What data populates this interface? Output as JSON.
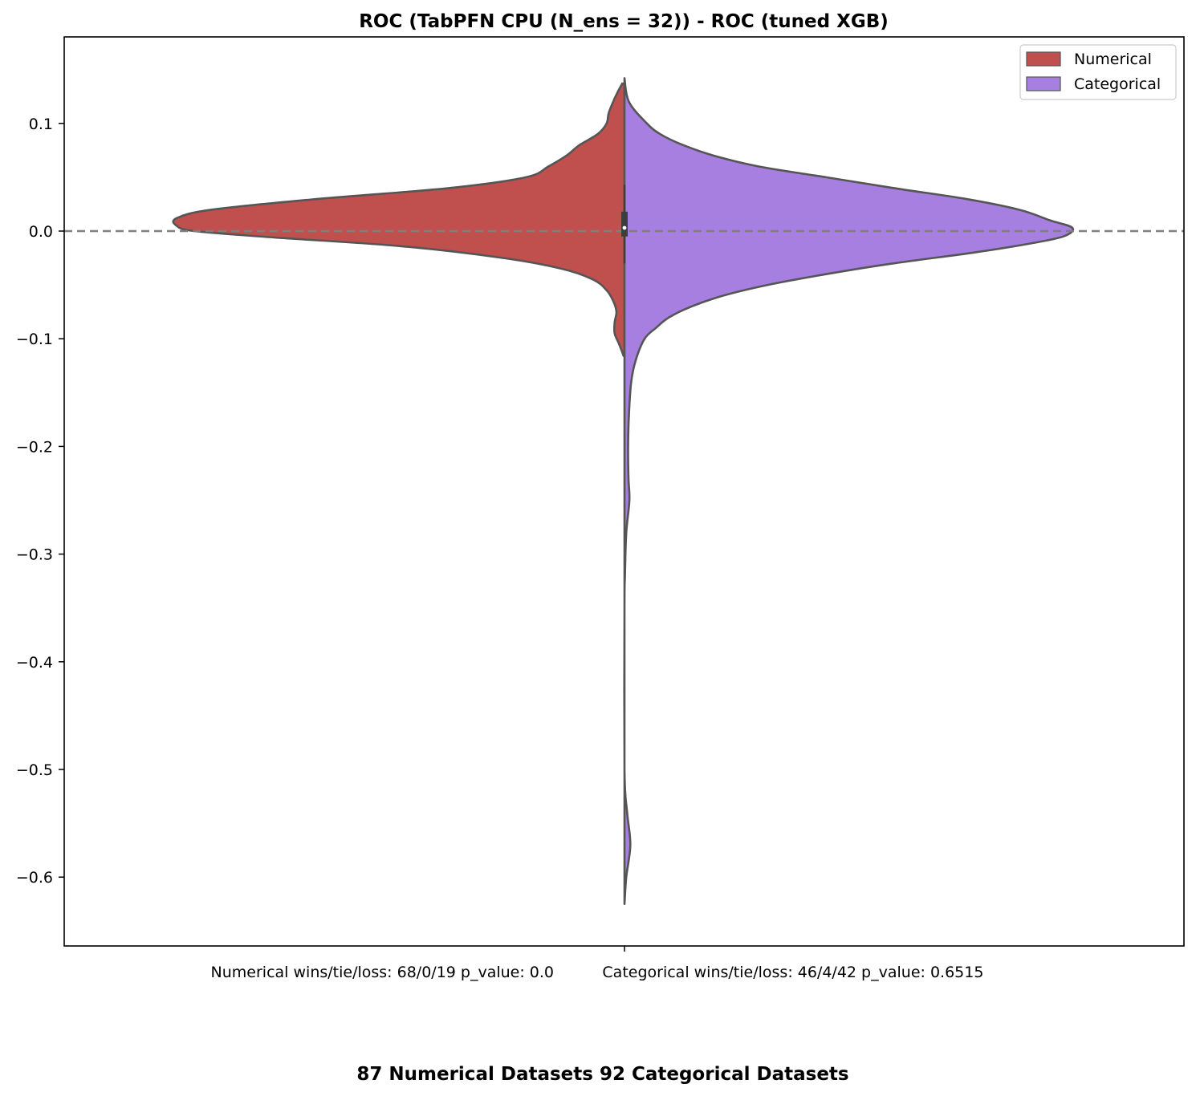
{
  "chart_data": {
    "type": "violin",
    "title": "ROC (TabPFN CPU (N_ens = 32)) - ROC (tuned XGB)",
    "xlabel": "Numerical wins/tie/loss: 68/0/19 p_value: 0.0          Categorical wins/tie/loss: 46/4/42 p_value: 0.6515",
    "footer": "87 Numerical Datasets 92 Categorical Datasets",
    "ylim": [
      -0.665,
      0.18
    ],
    "yticks": [
      0.1,
      0.0,
      -0.1,
      -0.2,
      -0.3,
      -0.4,
      -0.5,
      -0.6
    ],
    "ytick_labels": [
      "0.1",
      "0.0",
      "−0.1",
      "−0.2",
      "−0.3",
      "−0.4",
      "−0.5",
      "−0.6"
    ],
    "grid": false,
    "legend_position": "top-right",
    "reference_line": {
      "y": 0.0,
      "style": "dashed",
      "color": "#7f7f7f"
    },
    "series": [
      {
        "name": "Numerical",
        "color": "#c0504d",
        "side": "left",
        "density_profile": [
          [
            0.137,
            0.005
          ],
          [
            0.125,
            0.02
          ],
          [
            0.11,
            0.035
          ],
          [
            0.1,
            0.04
          ],
          [
            0.09,
            0.06
          ],
          [
            0.08,
            0.1
          ],
          [
            0.07,
            0.13
          ],
          [
            0.06,
            0.17
          ],
          [
            0.05,
            0.22
          ],
          [
            0.04,
            0.39
          ],
          [
            0.03,
            0.68
          ],
          [
            0.02,
            0.92
          ],
          [
            0.012,
            1.0
          ],
          [
            0.005,
            1.0
          ],
          [
            0.0,
            0.96
          ],
          [
            -0.006,
            0.78
          ],
          [
            -0.014,
            0.5
          ],
          [
            -0.025,
            0.27
          ],
          [
            -0.035,
            0.14
          ],
          [
            -0.045,
            0.07
          ],
          [
            -0.055,
            0.04
          ],
          [
            -0.065,
            0.025
          ],
          [
            -0.075,
            0.018
          ],
          [
            -0.085,
            0.022
          ],
          [
            -0.095,
            0.022
          ],
          [
            -0.105,
            0.012
          ],
          [
            -0.116,
            0.002
          ]
        ]
      },
      {
        "name": "Categorical",
        "color": "#a77fe0",
        "side": "right",
        "density_profile": [
          [
            0.142,
            0.0
          ],
          [
            0.12,
            0.01
          ],
          [
            0.1,
            0.05
          ],
          [
            0.09,
            0.08
          ],
          [
            0.08,
            0.13
          ],
          [
            0.07,
            0.2
          ],
          [
            0.06,
            0.3
          ],
          [
            0.05,
            0.45
          ],
          [
            0.04,
            0.6
          ],
          [
            0.03,
            0.76
          ],
          [
            0.02,
            0.88
          ],
          [
            0.01,
            0.95
          ],
          [
            0.003,
            1.0
          ],
          [
            -0.005,
            0.98
          ],
          [
            -0.012,
            0.9
          ],
          [
            -0.02,
            0.78
          ],
          [
            -0.03,
            0.6
          ],
          [
            -0.04,
            0.45
          ],
          [
            -0.05,
            0.32
          ],
          [
            -0.06,
            0.22
          ],
          [
            -0.07,
            0.15
          ],
          [
            -0.08,
            0.1
          ],
          [
            -0.09,
            0.07
          ],
          [
            -0.1,
            0.045
          ],
          [
            -0.12,
            0.025
          ],
          [
            -0.14,
            0.015
          ],
          [
            -0.17,
            0.01
          ],
          [
            -0.2,
            0.008
          ],
          [
            -0.23,
            0.009
          ],
          [
            -0.25,
            0.011
          ],
          [
            -0.28,
            0.004
          ],
          [
            -0.32,
            0.001
          ],
          [
            -0.35,
            0.0
          ],
          [
            -0.5,
            0.0
          ],
          [
            -0.54,
            0.006
          ],
          [
            -0.57,
            0.013
          ],
          [
            -0.6,
            0.004
          ],
          [
            -0.625,
            0.0
          ]
        ]
      }
    ],
    "inner_box": {
      "q1": -0.005,
      "q3": 0.018,
      "median": 0.003,
      "whisker_low": -0.03,
      "whisker_high": 0.043
    }
  }
}
